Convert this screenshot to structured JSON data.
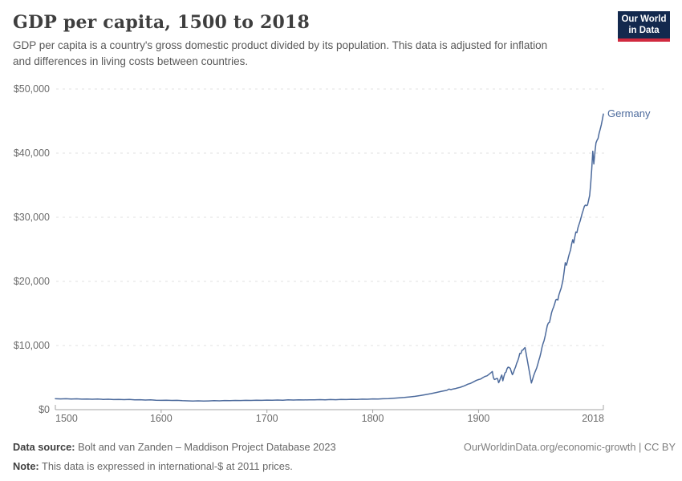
{
  "header": {
    "title": "GDP per capita, 1500 to 2018",
    "subtitle_lines": [
      "GDP per capita is a country's gross domestic product divided by its population. This data is adjusted for inflation",
      "and differences in living costs between countries."
    ]
  },
  "logo": {
    "line1": "Our World",
    "line2": "in Data",
    "bg_color": "#13294e",
    "accent_color": "#d0293e"
  },
  "footer": {
    "source_label": "Data source:",
    "source_text": " Bolt and van Zanden – Maddison Project Database 2023",
    "note_label": "Note:",
    "note_text": " This data is expressed in international-$ at 2011 prices.",
    "credit": "OurWorldinData.org/economic-growth | CC BY"
  },
  "chart_data": {
    "type": "line",
    "title": "GDP per capita, 1500 to 2018",
    "xlabel": "",
    "ylabel": "",
    "xlim": [
      1500,
      2018
    ],
    "ylim": [
      0,
      50000
    ],
    "grid": "horizontal-dashed",
    "legend_position": "end-of-line-label",
    "yticks": [
      {
        "v": 0,
        "label": "$0"
      },
      {
        "v": 10000,
        "label": "$10,000"
      },
      {
        "v": 20000,
        "label": "$20,000"
      },
      {
        "v": 30000,
        "label": "$30,000"
      },
      {
        "v": 40000,
        "label": "$40,000"
      },
      {
        "v": 50000,
        "label": "$50,000"
      }
    ],
    "xticks": [
      {
        "v": 1500,
        "label": "1500",
        "align": "start"
      },
      {
        "v": 1600,
        "label": "1600",
        "align": "middle"
      },
      {
        "v": 1700,
        "label": "1700",
        "align": "middle"
      },
      {
        "v": 1800,
        "label": "1800",
        "align": "middle"
      },
      {
        "v": 1900,
        "label": "1900",
        "align": "middle"
      },
      {
        "v": 2018,
        "label": "2018",
        "align": "end"
      }
    ],
    "series": [
      {
        "name": "Germany",
        "color": "#4c6a9c",
        "points": [
          [
            1500,
            1700
          ],
          [
            1505,
            1670
          ],
          [
            1510,
            1700
          ],
          [
            1515,
            1655
          ],
          [
            1520,
            1690
          ],
          [
            1525,
            1640
          ],
          [
            1530,
            1665
          ],
          [
            1535,
            1620
          ],
          [
            1540,
            1650
          ],
          [
            1545,
            1600
          ],
          [
            1550,
            1625
          ],
          [
            1555,
            1575
          ],
          [
            1560,
            1605
          ],
          [
            1565,
            1560
          ],
          [
            1570,
            1585
          ],
          [
            1575,
            1535
          ],
          [
            1580,
            1555
          ],
          [
            1585,
            1505
          ],
          [
            1590,
            1525
          ],
          [
            1595,
            1475
          ],
          [
            1600,
            1455
          ],
          [
            1605,
            1475
          ],
          [
            1610,
            1435
          ],
          [
            1615,
            1445
          ],
          [
            1620,
            1405
          ],
          [
            1625,
            1380
          ],
          [
            1630,
            1350
          ],
          [
            1635,
            1370
          ],
          [
            1640,
            1340
          ],
          [
            1645,
            1365
          ],
          [
            1650,
            1400
          ],
          [
            1655,
            1380
          ],
          [
            1660,
            1420
          ],
          [
            1665,
            1400
          ],
          [
            1670,
            1440
          ],
          [
            1675,
            1420
          ],
          [
            1680,
            1455
          ],
          [
            1685,
            1435
          ],
          [
            1690,
            1470
          ],
          [
            1695,
            1450
          ],
          [
            1700,
            1490
          ],
          [
            1705,
            1470
          ],
          [
            1710,
            1500
          ],
          [
            1715,
            1480
          ],
          [
            1720,
            1520
          ],
          [
            1725,
            1500
          ],
          [
            1730,
            1530
          ],
          [
            1735,
            1510
          ],
          [
            1740,
            1540
          ],
          [
            1745,
            1525
          ],
          [
            1750,
            1560
          ],
          [
            1755,
            1540
          ],
          [
            1760,
            1570
          ],
          [
            1765,
            1550
          ],
          [
            1770,
            1590
          ],
          [
            1775,
            1570
          ],
          [
            1780,
            1610
          ],
          [
            1785,
            1590
          ],
          [
            1790,
            1640
          ],
          [
            1795,
            1620
          ],
          [
            1800,
            1680
          ],
          [
            1805,
            1660
          ],
          [
            1810,
            1700
          ],
          [
            1815,
            1725
          ],
          [
            1820,
            1790
          ],
          [
            1825,
            1835
          ],
          [
            1830,
            1900
          ],
          [
            1835,
            1985
          ],
          [
            1840,
            2080
          ],
          [
            1845,
            2200
          ],
          [
            1850,
            2350
          ],
          [
            1855,
            2500
          ],
          [
            1860,
            2680
          ],
          [
            1865,
            2860
          ],
          [
            1870,
            3010
          ],
          [
            1872,
            3200
          ],
          [
            1874,
            3130
          ],
          [
            1876,
            3220
          ],
          [
            1878,
            3280
          ],
          [
            1880,
            3380
          ],
          [
            1882,
            3450
          ],
          [
            1884,
            3560
          ],
          [
            1886,
            3680
          ],
          [
            1888,
            3820
          ],
          [
            1890,
            3980
          ],
          [
            1892,
            4080
          ],
          [
            1894,
            4220
          ],
          [
            1896,
            4400
          ],
          [
            1898,
            4580
          ],
          [
            1900,
            4690
          ],
          [
            1902,
            4780
          ],
          [
            1904,
            4990
          ],
          [
            1906,
            5180
          ],
          [
            1908,
            5280
          ],
          [
            1910,
            5530
          ],
          [
            1912,
            5790
          ],
          [
            1913,
            5950
          ],
          [
            1914,
            5000
          ],
          [
            1915,
            4700
          ],
          [
            1916,
            4760
          ],
          [
            1917,
            4850
          ],
          [
            1918,
            4840
          ],
          [
            1919,
            4200
          ],
          [
            1920,
            4550
          ],
          [
            1921,
            5050
          ],
          [
            1922,
            5400
          ],
          [
            1923,
            4500
          ],
          [
            1924,
            5200
          ],
          [
            1925,
            5720
          ],
          [
            1926,
            5860
          ],
          [
            1927,
            6400
          ],
          [
            1928,
            6620
          ],
          [
            1929,
            6560
          ],
          [
            1930,
            6420
          ],
          [
            1931,
            5920
          ],
          [
            1932,
            5450
          ],
          [
            1933,
            5760
          ],
          [
            1934,
            6250
          ],
          [
            1935,
            6680
          ],
          [
            1936,
            7210
          ],
          [
            1937,
            7590
          ],
          [
            1938,
            8090
          ],
          [
            1939,
            8760
          ],
          [
            1940,
            8750
          ],
          [
            1941,
            9250
          ],
          [
            1942,
            9300
          ],
          [
            1943,
            9530
          ],
          [
            1944,
            9680
          ],
          [
            1950,
            4150
          ],
          [
            1951,
            4700
          ],
          [
            1952,
            5250
          ],
          [
            1953,
            5700
          ],
          [
            1954,
            6100
          ],
          [
            1955,
            6500
          ],
          [
            1956,
            7100
          ],
          [
            1957,
            7700
          ],
          [
            1958,
            8230
          ],
          [
            1959,
            8900
          ],
          [
            1960,
            9700
          ],
          [
            1961,
            10300
          ],
          [
            1962,
            10800
          ],
          [
            1963,
            11500
          ],
          [
            1964,
            12300
          ],
          [
            1965,
            13100
          ],
          [
            1966,
            13500
          ],
          [
            1967,
            13600
          ],
          [
            1968,
            14300
          ],
          [
            1969,
            15100
          ],
          [
            1970,
            15600
          ],
          [
            1971,
            16000
          ],
          [
            1972,
            16500
          ],
          [
            1973,
            17100
          ],
          [
            1974,
            17200
          ],
          [
            1975,
            17100
          ],
          [
            1976,
            17900
          ],
          [
            1977,
            18400
          ],
          [
            1978,
            18900
          ],
          [
            1979,
            19600
          ],
          [
            1980,
            20400
          ],
          [
            1981,
            21600
          ],
          [
            1982,
            22900
          ],
          [
            1983,
            22500
          ],
          [
            1984,
            23100
          ],
          [
            1985,
            23800
          ],
          [
            1986,
            24400
          ],
          [
            1987,
            24900
          ],
          [
            1988,
            25800
          ],
          [
            1989,
            26500
          ],
          [
            1990,
            26000
          ],
          [
            1991,
            26900
          ],
          [
            1992,
            27700
          ],
          [
            1993,
            27600
          ],
          [
            1994,
            28400
          ],
          [
            1995,
            28900
          ],
          [
            1996,
            29400
          ],
          [
            1997,
            30000
          ],
          [
            1998,
            30600
          ],
          [
            1999,
            31100
          ],
          [
            2000,
            31700
          ],
          [
            2001,
            31900
          ],
          [
            2002,
            31800
          ],
          [
            2003,
            31900
          ],
          [
            2004,
            32600
          ],
          [
            2005,
            33400
          ],
          [
            2006,
            35200
          ],
          [
            2007,
            37500
          ],
          [
            2008,
            40300
          ],
          [
            2009,
            38300
          ],
          [
            2010,
            40200
          ],
          [
            2011,
            41600
          ],
          [
            2012,
            42000
          ],
          [
            2013,
            42300
          ],
          [
            2014,
            43100
          ],
          [
            2015,
            43700
          ],
          [
            2016,
            44400
          ],
          [
            2017,
            45200
          ],
          [
            2018,
            46100
          ]
        ]
      }
    ],
    "annotations": [
      {
        "text": "Germany",
        "color": "#4c6a9c"
      }
    ]
  }
}
